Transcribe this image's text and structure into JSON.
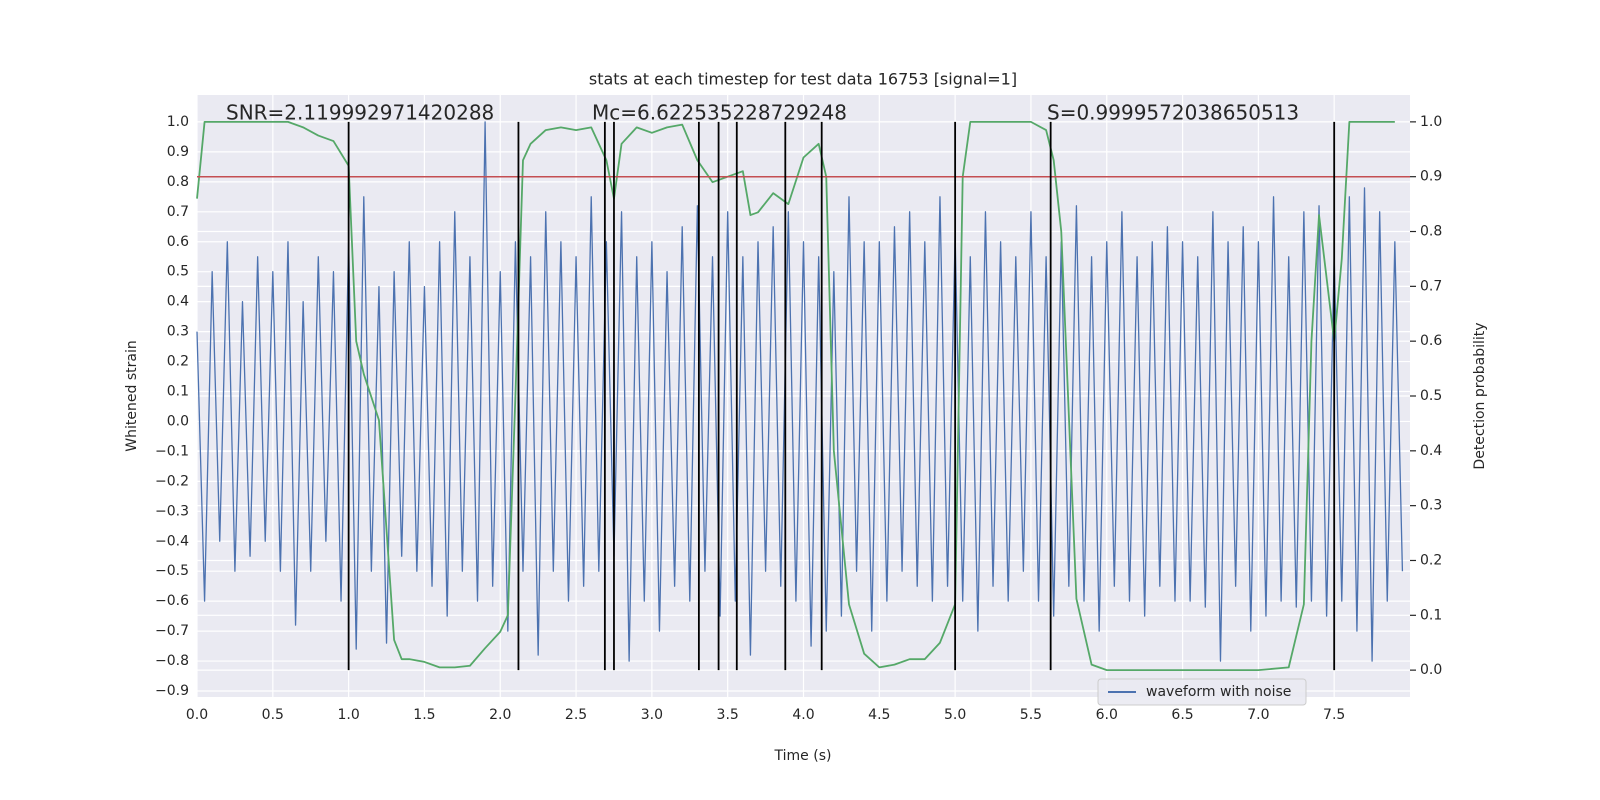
{
  "chart_data": {
    "type": "line",
    "title": "stats at each timestep for test data 16753 [signal=1]",
    "xlabel": "Time (s)",
    "ylabel": "Whitened strain",
    "y2label": "Detection probability",
    "annotations": [
      "SNR=2.119992971420288",
      "Mc=6.622535228729248",
      "S=0.9999572038650513"
    ],
    "xlim": [
      0,
      8.0
    ],
    "ylim": [
      -0.92,
      1.09
    ],
    "y2lim": [
      -0.049,
      1.049
    ],
    "xticks": [
      {
        "value": 0,
        "label": "0.0"
      },
      {
        "value": 0.5,
        "label": "0.5"
      },
      {
        "value": 1,
        "label": "1.0"
      },
      {
        "value": 1.5,
        "label": "1.5"
      },
      {
        "value": 2,
        "label": "2.0"
      },
      {
        "value": 2.5,
        "label": "2.5"
      },
      {
        "value": 3,
        "label": "3.0"
      },
      {
        "value": 3.5,
        "label": "3.5"
      },
      {
        "value": 4,
        "label": "4.0"
      },
      {
        "value": 4.5,
        "label": "4.5"
      },
      {
        "value": 5,
        "label": "5.0"
      },
      {
        "value": 5.5,
        "label": "5.5"
      },
      {
        "value": 6,
        "label": "6.0"
      },
      {
        "value": 6.5,
        "label": "6.5"
      },
      {
        "value": 7,
        "label": "7.0"
      },
      {
        "value": 7.5,
        "label": "7.5"
      }
    ],
    "yticks": [
      {
        "value": -0.9,
        "label": "−0.9"
      },
      {
        "value": -0.8,
        "label": "−0.8"
      },
      {
        "value": -0.7,
        "label": "−0.7"
      },
      {
        "value": -0.6,
        "label": "−0.6"
      },
      {
        "value": -0.5,
        "label": "−0.5"
      },
      {
        "value": -0.4,
        "label": "−0.4"
      },
      {
        "value": -0.3,
        "label": "−0.3"
      },
      {
        "value": -0.2,
        "label": "−0.2"
      },
      {
        "value": -0.1,
        "label": "−0.1"
      },
      {
        "value": 0,
        "label": "0.0"
      },
      {
        "value": 0.1,
        "label": "0.1"
      },
      {
        "value": 0.2,
        "label": "0.2"
      },
      {
        "value": 0.3,
        "label": "0.3"
      },
      {
        "value": 0.4,
        "label": "0.4"
      },
      {
        "value": 0.5,
        "label": "0.5"
      },
      {
        "value": 0.6,
        "label": "0.6"
      },
      {
        "value": 0.7,
        "label": "0.7"
      },
      {
        "value": 0.8,
        "label": "0.8"
      },
      {
        "value": 0.9,
        "label": "0.9"
      },
      {
        "value": 1,
        "label": "1.0"
      }
    ],
    "y2ticks": [
      {
        "value": 0,
        "label": "0.0"
      },
      {
        "value": 0.1,
        "label": "0.1"
      },
      {
        "value": 0.2,
        "label": "0.2"
      },
      {
        "value": 0.3,
        "label": "0.3"
      },
      {
        "value": 0.4,
        "label": "0.4"
      },
      {
        "value": 0.5,
        "label": "0.5"
      },
      {
        "value": 0.6,
        "label": "0.6"
      },
      {
        "value": 0.7,
        "label": "0.7"
      },
      {
        "value": 0.8,
        "label": "0.8"
      },
      {
        "value": 0.9,
        "label": "0.9"
      },
      {
        "value": 1,
        "label": "1.0"
      }
    ],
    "grid": true,
    "legend_position": "lower right",
    "threshold": {
      "value": 0.9,
      "axis": "y2",
      "color": "#c44e52"
    },
    "vlines": {
      "x": [
        1.0,
        2.12,
        2.69,
        2.75,
        3.31,
        3.44,
        3.56,
        3.88,
        4.12,
        5.0,
        5.63,
        7.5
      ],
      "y2range": [
        0,
        1
      ],
      "color": "#000000"
    },
    "series": [
      {
        "name": "waveform with noise",
        "color": "#4c72b0",
        "axis": "y",
        "x": [
          0,
          0.05,
          0.1,
          0.15,
          0.2,
          0.25,
          0.3,
          0.35,
          0.4,
          0.45,
          0.5,
          0.55,
          0.6,
          0.65,
          0.7,
          0.75,
          0.8,
          0.85,
          0.9,
          0.95,
          1,
          1.05,
          1.1,
          1.15,
          1.2,
          1.25,
          1.3,
          1.35,
          1.4,
          1.45,
          1.5,
          1.55,
          1.6,
          1.65,
          1.7,
          1.75,
          1.8,
          1.85,
          1.9,
          1.95,
          2,
          2.05,
          2.1,
          2.15,
          2.2,
          2.25,
          2.3,
          2.35,
          2.4,
          2.45,
          2.5,
          2.55,
          2.6,
          2.65,
          2.7,
          2.75,
          2.8,
          2.85,
          2.9,
          2.95,
          3,
          3.05,
          3.1,
          3.15,
          3.2,
          3.25,
          3.3,
          3.35,
          3.4,
          3.45,
          3.5,
          3.55,
          3.6,
          3.65,
          3.7,
          3.75,
          3.8,
          3.85,
          3.9,
          3.95,
          4,
          4.05,
          4.1,
          4.15,
          4.2,
          4.25,
          4.3,
          4.35,
          4.4,
          4.45,
          4.5,
          4.55,
          4.6,
          4.65,
          4.7,
          4.75,
          4.8,
          4.85,
          4.9,
          4.95,
          5,
          5.05,
          5.1,
          5.15,
          5.2,
          5.25,
          5.3,
          5.35,
          5.4,
          5.45,
          5.5,
          5.55,
          5.6,
          5.65,
          5.7,
          5.75,
          5.8,
          5.85,
          5.9,
          5.95,
          6,
          6.05,
          6.1,
          6.15,
          6.2,
          6.25,
          6.3,
          6.35,
          6.4,
          6.45,
          6.5,
          6.55,
          6.6,
          6.65,
          6.7,
          6.75,
          6.8,
          6.85,
          6.9,
          6.95,
          7,
          7.05,
          7.1,
          7.15,
          7.2,
          7.25,
          7.3,
          7.35,
          7.4,
          7.45,
          7.5,
          7.55,
          7.6,
          7.65,
          7.7,
          7.75,
          7.8,
          7.85,
          7.9,
          7.95
        ],
        "values": [
          0.3,
          -0.6,
          0.5,
          -0.4,
          0.6,
          -0.5,
          0.4,
          -0.45,
          0.55,
          -0.4,
          0.5,
          -0.5,
          0.6,
          -0.68,
          0.4,
          -0.5,
          0.55,
          -0.4,
          0.5,
          -0.6,
          0.6,
          -0.76,
          0.75,
          -0.5,
          0.45,
          -0.74,
          0.5,
          -0.45,
          0.6,
          -0.5,
          0.45,
          -0.55,
          0.6,
          -0.65,
          0.7,
          -0.5,
          0.55,
          -0.6,
          1.0,
          -0.55,
          0.5,
          -0.7,
          0.6,
          -0.5,
          0.55,
          -0.78,
          0.7,
          -0.5,
          0.6,
          -0.6,
          0.55,
          -0.55,
          0.75,
          -0.5,
          0.6,
          -0.45,
          0.7,
          -0.8,
          0.55,
          -0.6,
          0.6,
          -0.7,
          0.5,
          -0.55,
          0.65,
          -0.6,
          0.72,
          -0.5,
          0.55,
          -0.65,
          0.7,
          -0.6,
          0.55,
          -0.78,
          0.6,
          -0.5,
          0.65,
          -0.55,
          0.7,
          -0.6,
          0.6,
          -0.75,
          0.55,
          -0.7,
          0.5,
          -0.65,
          0.75,
          -0.5,
          0.6,
          -0.7,
          0.6,
          -0.6,
          0.65,
          -0.5,
          0.7,
          -0.55,
          0.6,
          -0.6,
          0.75,
          -0.55,
          0.62,
          -0.6,
          0.55,
          -0.7,
          0.7,
          -0.55,
          0.6,
          -0.6,
          0.55,
          -0.5,
          0.7,
          -0.6,
          0.55,
          -0.65,
          0.6,
          -0.55,
          0.72,
          -0.6,
          0.55,
          -0.7,
          0.6,
          -0.55,
          0.7,
          -0.6,
          0.55,
          -0.65,
          0.6,
          -0.55,
          0.65,
          -0.6,
          0.6,
          -0.6,
          0.55,
          -0.62,
          0.7,
          -0.8,
          0.6,
          -0.55,
          0.65,
          -0.7,
          0.6,
          -0.65,
          0.75,
          -0.6,
          0.55,
          -0.62,
          0.7,
          -0.6,
          0.72,
          -0.65,
          0.55,
          -0.6,
          0.75,
          -0.7,
          0.78,
          -0.8,
          0.7,
          -0.6,
          0.6,
          -0.5
        ]
      },
      {
        "color": "#55a868",
        "axis": "y2",
        "x": [
          0,
          0.05,
          0.1,
          0.2,
          0.3,
          0.4,
          0.5,
          0.6,
          0.7,
          0.8,
          0.9,
          1.0,
          1.05,
          1.1,
          1.2,
          1.3,
          1.35,
          1.4,
          1.5,
          1.6,
          1.7,
          1.8,
          1.9,
          2.0,
          2.05,
          2.1,
          2.15,
          2.2,
          2.3,
          2.4,
          2.5,
          2.6,
          2.7,
          2.75,
          2.8,
          2.9,
          3.0,
          3.1,
          3.2,
          3.3,
          3.4,
          3.5,
          3.6,
          3.65,
          3.7,
          3.8,
          3.9,
          4.0,
          4.1,
          4.15,
          4.2,
          4.3,
          4.4,
          4.5,
          4.6,
          4.7,
          4.8,
          4.9,
          5.0,
          5.05,
          5.1,
          5.2,
          5.3,
          5.4,
          5.5,
          5.6,
          5.65,
          5.7,
          5.8,
          5.9,
          6.0,
          6.5,
          7.0,
          7.2,
          7.3,
          7.35,
          7.4,
          7.5,
          7.55,
          7.6,
          7.9
        ],
        "values": [
          0.86,
          1.0,
          1.0,
          1.0,
          1.0,
          1.0,
          1.0,
          1.0,
          0.99,
          0.975,
          0.965,
          0.92,
          0.6,
          0.54,
          0.456,
          0.055,
          0.02,
          0.02,
          0.015,
          0.005,
          0.005,
          0.008,
          0.04,
          0.07,
          0.1,
          0.5,
          0.93,
          0.96,
          0.985,
          0.99,
          0.985,
          0.99,
          0.93,
          0.86,
          0.96,
          0.99,
          0.98,
          0.99,
          0.995,
          0.93,
          0.89,
          0.9,
          0.91,
          0.83,
          0.835,
          0.87,
          0.85,
          0.935,
          0.96,
          0.9,
          0.4,
          0.12,
          0.03,
          0.005,
          0.01,
          0.02,
          0.02,
          0.05,
          0.12,
          0.9,
          1.0,
          1.0,
          1.0,
          1.0,
          1.0,
          0.985,
          0.93,
          0.8,
          0.13,
          0.01,
          0.0,
          0.0,
          0.0,
          0.005,
          0.12,
          0.6,
          0.83,
          0.6,
          0.75,
          1.0,
          1.0
        ]
      }
    ]
  }
}
